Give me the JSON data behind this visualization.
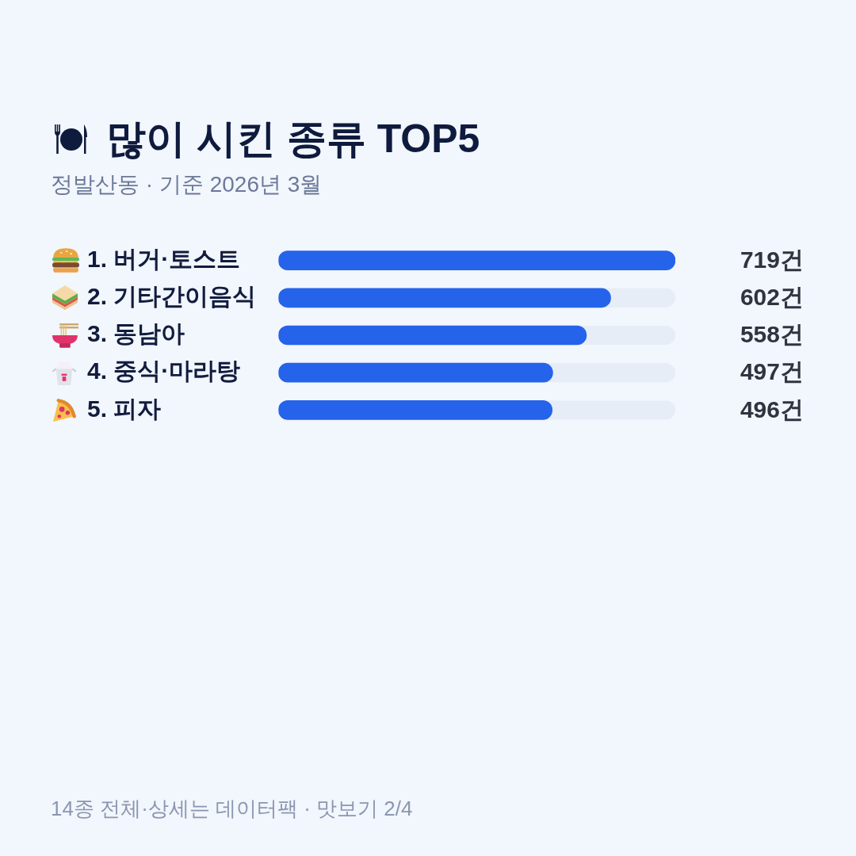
{
  "chart_data": {
    "type": "bar",
    "orientation": "horizontal",
    "title": "많이 시킨 종류 TOP5",
    "subtitle": "정발산동 · 기준 2026년 3월",
    "categories": [
      "1. 버거·토스트",
      "2. 기타간이음식",
      "3. 동남아",
      "4. 중식·마라탕",
      "5. 피자"
    ],
    "values": [
      719,
      602,
      558,
      497,
      496
    ],
    "value_labels": [
      "719건",
      "602건",
      "558건",
      "497건",
      "496건"
    ],
    "color": "#2563eb",
    "tick_labels": "y",
    "grid": false,
    "legend": false,
    "annotations": [
      "14종 전체·상세는 데이터팩 · 맛보기 2/4"
    ]
  }
}
